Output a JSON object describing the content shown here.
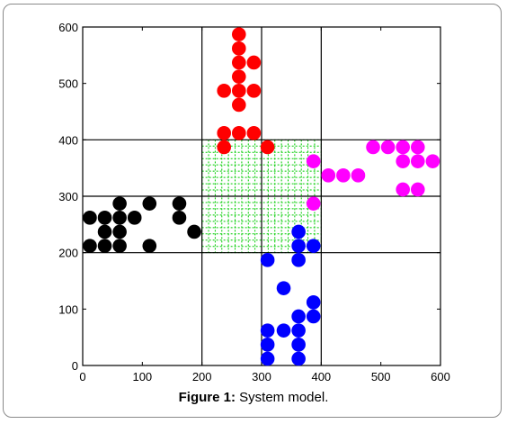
{
  "caption": {
    "label": "Figure 1:",
    "text": "System model."
  },
  "chart_data": {
    "type": "scatter",
    "xlim": [
      0,
      600
    ],
    "ylim": [
      0,
      600
    ],
    "xticks": [
      "0",
      "100",
      "200",
      "300",
      "400",
      "500",
      "600"
    ],
    "yticks": [
      "0",
      "100",
      "200",
      "300",
      "400",
      "500",
      "600"
    ],
    "road_lines": {
      "vertical": [
        200,
        300,
        400
      ],
      "horizontal": [
        200,
        300,
        400
      ]
    },
    "intersection_grid": {
      "x_range": [
        200,
        400
      ],
      "y_range": [
        200,
        400
      ],
      "color": "#00cc00"
    },
    "series": [
      {
        "color": "#ff0000",
        "points": [
          [
            262,
            587
          ],
          [
            262,
            562
          ],
          [
            262,
            537
          ],
          [
            287,
            537
          ],
          [
            262,
            512
          ],
          [
            237,
            487
          ],
          [
            262,
            487
          ],
          [
            287,
            487
          ],
          [
            262,
            462
          ],
          [
            237,
            412
          ],
          [
            262,
            412
          ],
          [
            287,
            412
          ],
          [
            237,
            387
          ],
          [
            310,
            387
          ]
        ]
      },
      {
        "color": "#ff00ff",
        "points": [
          [
            387,
            362
          ],
          [
            412,
            337
          ],
          [
            437,
            337
          ],
          [
            462,
            337
          ],
          [
            487,
            387
          ],
          [
            512,
            387
          ],
          [
            537,
            387
          ],
          [
            562,
            387
          ],
          [
            537,
            362
          ],
          [
            562,
            362
          ],
          [
            587,
            362
          ],
          [
            537,
            312
          ],
          [
            562,
            312
          ],
          [
            387,
            287
          ]
        ]
      },
      {
        "color": "#000000",
        "points": [
          [
            12,
            262
          ],
          [
            37,
            262
          ],
          [
            62,
            262
          ],
          [
            87,
            262
          ],
          [
            62,
            287
          ],
          [
            112,
            287
          ],
          [
            162,
            287
          ],
          [
            162,
            262
          ],
          [
            37,
            237
          ],
          [
            62,
            237
          ],
          [
            187,
            237
          ],
          [
            12,
            212
          ],
          [
            37,
            212
          ],
          [
            62,
            212
          ],
          [
            112,
            212
          ]
        ]
      },
      {
        "color": "#0000ff",
        "points": [
          [
            362,
            237
          ],
          [
            362,
            212
          ],
          [
            387,
            212
          ],
          [
            310,
            187
          ],
          [
            362,
            187
          ],
          [
            337,
            137
          ],
          [
            387,
            112
          ],
          [
            362,
            87
          ],
          [
            387,
            87
          ],
          [
            310,
            62
          ],
          [
            337,
            62
          ],
          [
            362,
            62
          ],
          [
            310,
            37
          ],
          [
            362,
            37
          ],
          [
            310,
            12
          ],
          [
            362,
            12
          ]
        ]
      }
    ]
  }
}
